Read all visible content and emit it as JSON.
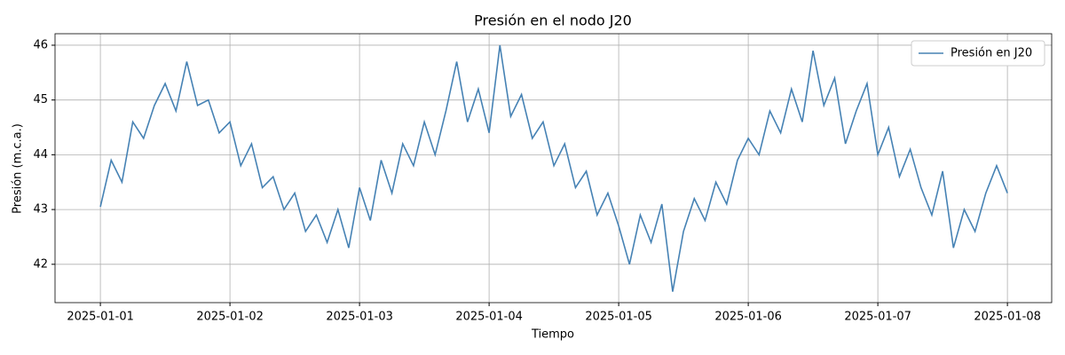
{
  "chart_data": {
    "type": "line",
    "title": "Presión en el nodo J20",
    "xlabel": "Tiempo",
    "ylabel": "Presión (m.c.a.)",
    "x": [
      0,
      2,
      4,
      6,
      8,
      10,
      12,
      14,
      16,
      18,
      20,
      22,
      24,
      26,
      28,
      30,
      32,
      34,
      36,
      38,
      40,
      42,
      44,
      46,
      48,
      50,
      52,
      54,
      56,
      58,
      60,
      62,
      64,
      66,
      68,
      70,
      72,
      74,
      76,
      78,
      80,
      82,
      84,
      86,
      88,
      90,
      92,
      94,
      96,
      98,
      100,
      102,
      104,
      106,
      108,
      110,
      112,
      114,
      116,
      118,
      120,
      122,
      124,
      126,
      128,
      130,
      132,
      134,
      136,
      138,
      140,
      142,
      144,
      146,
      148,
      150,
      152,
      154,
      156,
      158,
      160,
      162,
      164,
      166,
      168
    ],
    "series": [
      {
        "name": "Presión en J20",
        "color": "#4682b4",
        "values": [
          43.05,
          43.9,
          43.5,
          44.6,
          44.3,
          44.9,
          45.3,
          44.8,
          45.7,
          44.9,
          45.0,
          44.4,
          44.6,
          43.8,
          44.2,
          43.4,
          43.6,
          43.0,
          43.3,
          42.6,
          42.9,
          42.4,
          43.0,
          42.3,
          43.4,
          42.8,
          43.9,
          43.3,
          44.2,
          43.8,
          44.6,
          44.0,
          44.8,
          45.7,
          44.6,
          45.2,
          44.4,
          46.0,
          44.7,
          45.1,
          44.3,
          44.6,
          43.8,
          44.2,
          43.4,
          43.7,
          42.9,
          43.3,
          42.7,
          42.0,
          42.9,
          42.4,
          43.1,
          41.5,
          42.6,
          43.2,
          42.8,
          43.5,
          43.1,
          43.9,
          44.3,
          44.0,
          44.8,
          44.4,
          45.2,
          44.6,
          45.9,
          44.9,
          45.4,
          44.2,
          44.8,
          45.3,
          44.0,
          44.5,
          43.6,
          44.1,
          43.4,
          42.9,
          43.7,
          42.3,
          43.0,
          42.6,
          43.3,
          43.8,
          43.3
        ]
      }
    ],
    "xlim": [
      -8.4,
      176.2
    ],
    "ylim": [
      41.3,
      46.21
    ],
    "xticks": [
      {
        "value": 0,
        "label": "2025-01-01"
      },
      {
        "value": 24,
        "label": "2025-01-02"
      },
      {
        "value": 48,
        "label": "2025-01-03"
      },
      {
        "value": 72,
        "label": "2025-01-04"
      },
      {
        "value": 96,
        "label": "2025-01-05"
      },
      {
        "value": 120,
        "label": "2025-01-06"
      },
      {
        "value": 144,
        "label": "2025-01-07"
      },
      {
        "value": 168,
        "label": "2025-01-08"
      }
    ],
    "yticks": [
      42,
      43,
      44,
      45,
      46
    ],
    "grid": true,
    "legend": "upper right"
  }
}
